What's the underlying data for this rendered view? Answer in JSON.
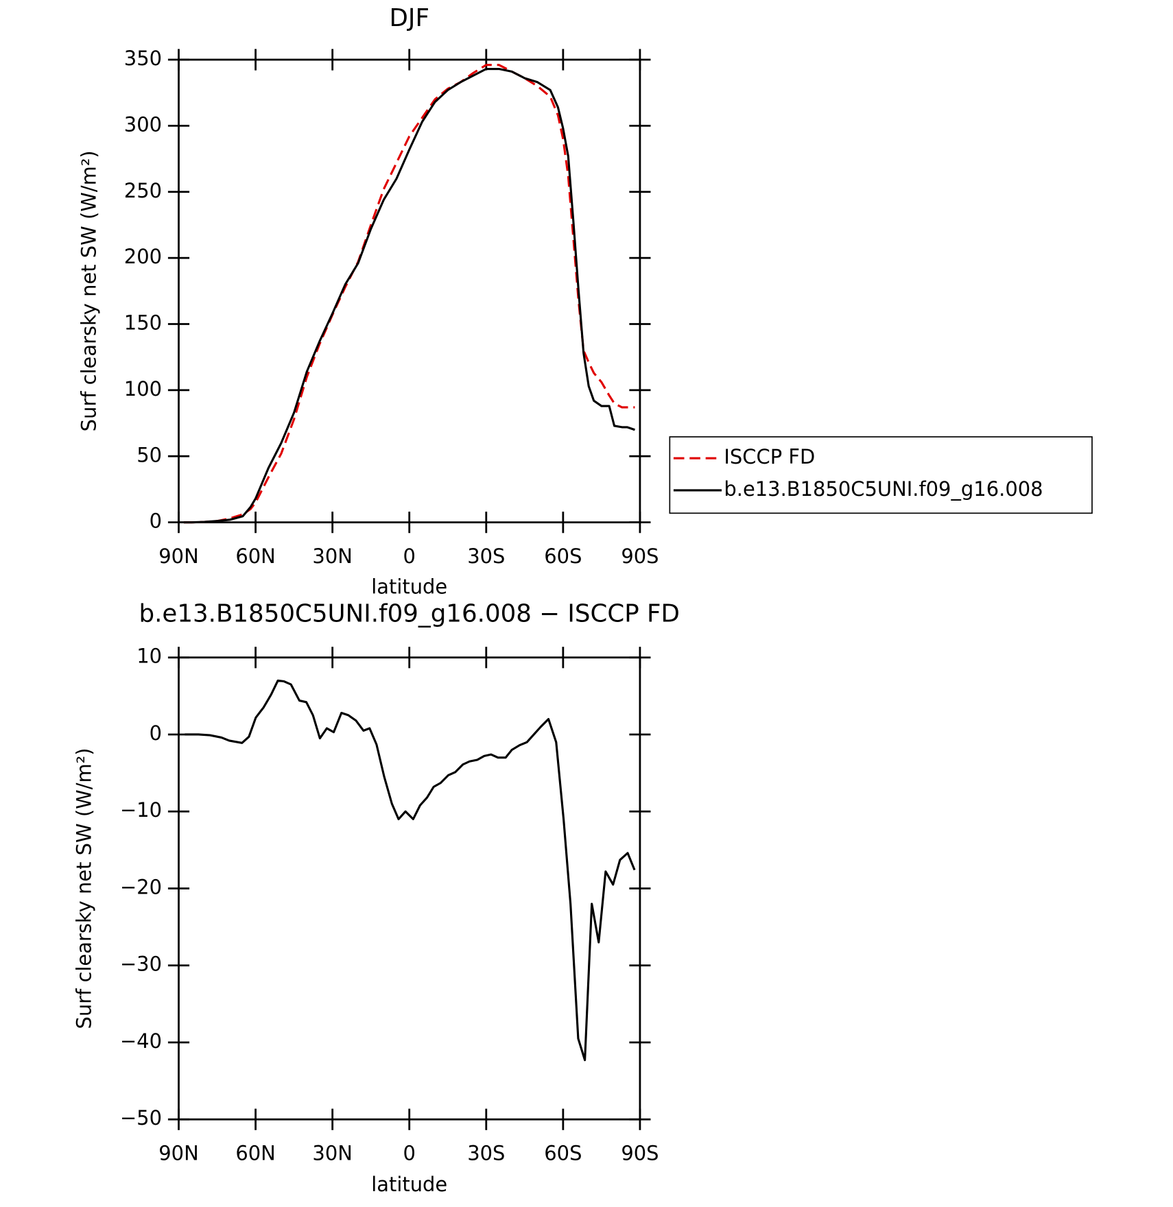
{
  "chart_data": [
    {
      "type": "line",
      "title": "DJF",
      "x_label": "latitude",
      "y_label": "Surf clearsky net SW (W/m²)",
      "x": [
        88,
        85,
        80,
        75,
        70,
        65,
        62,
        60,
        55,
        50,
        45,
        40,
        35,
        30,
        25,
        20,
        15,
        10,
        5,
        0,
        -5,
        -10,
        -15,
        -20,
        -25,
        -30,
        -35,
        -40,
        -45,
        -50,
        -55,
        -58,
        -60,
        -62,
        -64,
        -66,
        -68,
        -70,
        -72,
        -75,
        -78,
        -80,
        -83,
        -85,
        -88
      ],
      "series": [
        {
          "name": "ISCCP FD",
          "color": "#e00000",
          "linestyle": "dashed",
          "values": [
            0,
            0,
            0.3,
            1,
            3,
            6,
            10,
            15,
            34,
            52,
            78,
            110,
            135,
            157,
            178,
            197,
            225,
            252,
            272,
            292,
            306,
            320,
            328,
            333,
            340,
            346,
            346,
            341,
            336,
            330,
            322,
            308,
            290,
            262,
            215,
            168,
            130,
            121,
            113,
            106,
            96,
            90,
            87,
            87,
            87
          ]
        },
        {
          "name": "b.e13.B1850C5UNI.f09_g16.008",
          "color": "#000000",
          "linestyle": "solid",
          "values": [
            0,
            0,
            0.3,
            1,
            2,
            4.6,
            11.5,
            18,
            41,
            60,
            83,
            114,
            137,
            158,
            180,
            196,
            222,
            244,
            260,
            282,
            303,
            318,
            327,
            333,
            338,
            343,
            343,
            341,
            336,
            333,
            327,
            314,
            298,
            277,
            228,
            176,
            128,
            103,
            92,
            88,
            88,
            73,
            72,
            72,
            70
          ]
        }
      ],
      "xlim": [
        90,
        -90
      ],
      "xticks": [
        {
          "value": 90,
          "label": "90N"
        },
        {
          "value": 60,
          "label": "60N"
        },
        {
          "value": 30,
          "label": "30N"
        },
        0,
        {
          "value": -30,
          "label": "30S"
        },
        {
          "value": -60,
          "label": "60S"
        },
        {
          "value": -90,
          "label": "90S"
        }
      ],
      "ylim": [
        0,
        350
      ],
      "yticks": [
        0,
        50,
        100,
        150,
        200,
        250,
        300,
        350
      ],
      "legend": "right"
    },
    {
      "type": "line",
      "title": "b.e13.B1850C5UNI.f09_g16.008 − ISCCP FD",
      "x_label": "latitude",
      "y_label": "Surf clearsky net SW (W/m²)",
      "x": [
        87.6,
        82.3,
        77.8,
        73.3,
        70.3,
        65.3,
        62.6,
        59.9,
        56.9,
        53.9,
        51.3,
        48.9,
        46.2,
        42.9,
        40.2,
        37.6,
        34.9,
        32.2,
        29.5,
        26.5,
        23.8,
        20.8,
        17.9,
        15.5,
        12.8,
        9.8,
        6.8,
        4.2,
        1.5,
        -1.5,
        -4.2,
        -6.9,
        -9.5,
        -12.2,
        -15.2,
        -17.9,
        -20.9,
        -23.5,
        -26.5,
        -29.2,
        -31.9,
        -34.6,
        -37.6,
        -40.0,
        -43.0,
        -45.9,
        -48.6,
        -51.3,
        -54.3,
        -57.3,
        -60.2,
        -62.9,
        -65.9,
        -68.5,
        -71.2,
        -73.9,
        -76.6,
        -79.5,
        -82.2,
        -85.2,
        -87.9
      ],
      "series": [
        {
          "color": "#000000",
          "linestyle": "solid",
          "values": [
            0,
            0,
            -0.1,
            -0.4,
            -0.8,
            -1.1,
            -0.3,
            2.2,
            3.5,
            5.2,
            7,
            6.9,
            6.5,
            4.4,
            4.2,
            2.5,
            -0.5,
            0.8,
            0.3,
            2.8,
            2.5,
            1.8,
            0.5,
            0.8,
            -1.3,
            -5.5,
            -9,
            -11,
            -10,
            -11,
            -9.2,
            -8.2,
            -6.8,
            -6.3,
            -5.3,
            -4.9,
            -3.9,
            -3.5,
            -3.3,
            -2.8,
            -2.6,
            -3,
            -3,
            -2,
            -1.4,
            -1,
            0,
            1,
            2,
            -1,
            -11,
            -22,
            -39.5,
            -42.3,
            -22,
            -27,
            -17.8,
            -19.5,
            -16.3,
            -15.4,
            -17.6
          ]
        }
      ],
      "xlim": [
        90,
        -90
      ],
      "xticks": [
        {
          "value": 90,
          "label": "90N"
        },
        {
          "value": 60,
          "label": "60N"
        },
        {
          "value": 30,
          "label": "30N"
        },
        0,
        {
          "value": -30,
          "label": "30S"
        },
        {
          "value": -60,
          "label": "60S"
        },
        {
          "value": -90,
          "label": "90S"
        }
      ],
      "ylim": [
        -50,
        10
      ],
      "yticks": [
        -50,
        -40,
        -30,
        -20,
        -10,
        0,
        10
      ]
    }
  ]
}
